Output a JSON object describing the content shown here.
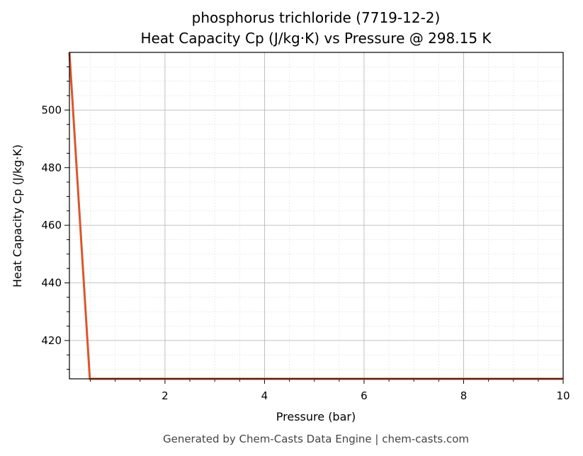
{
  "chart_data": {
    "type": "line",
    "title": "phosphorus trichloride (7719-12-2)",
    "subtitle": "Heat Capacity Cp (J/kg·K) vs Pressure @ 298.15 K",
    "x_label": "Pressure (bar)",
    "y_label": "Heat Capacity Cp (J/kg·K)",
    "footer": "Generated by Chem-Casts Data Engine | chem-casts.com",
    "x": [
      0.08,
      0.49,
      10
    ],
    "series": [
      {
        "name": "Heat Capacity Cp",
        "color": "#d9572b",
        "values": [
          520,
          406.7,
          406.7
        ]
      }
    ],
    "xlim": [
      0.08,
      10
    ],
    "ylim": [
      406.7,
      520
    ],
    "xticks": [
      2,
      4,
      6,
      8,
      10
    ],
    "yticks": [
      420,
      440,
      460,
      480,
      500
    ],
    "xminorticks": [
      0.5,
      1,
      1.5,
      2.5,
      3,
      3.5,
      4.5,
      5,
      5.5,
      6.5,
      7,
      7.5,
      8.5,
      9,
      9.5
    ],
    "yminorticks": [
      410,
      415,
      425,
      430,
      435,
      445,
      450,
      455,
      465,
      470,
      475,
      485,
      490,
      495,
      505,
      510,
      515
    ],
    "grid": true
  }
}
